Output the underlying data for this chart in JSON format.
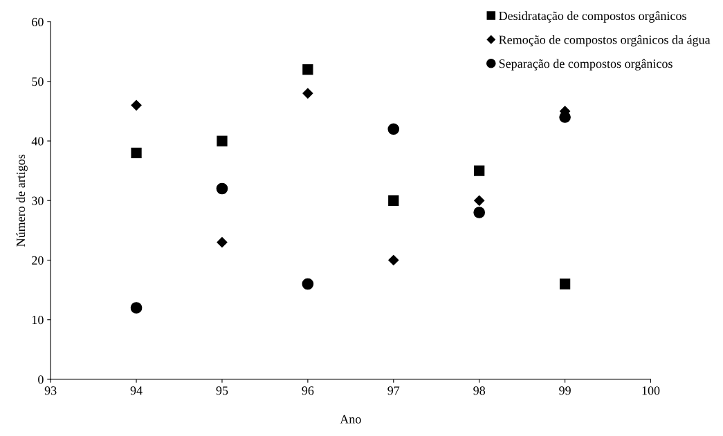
{
  "chart_data": {
    "type": "scatter",
    "xlabel": "Ano",
    "ylabel": "Número de artigos",
    "x": [
      94,
      95,
      96,
      97,
      98,
      99
    ],
    "series": [
      {
        "name": "Desidratação de compostos orgânicos",
        "color": "#000000",
        "marker": "square",
        "values": [
          38,
          40,
          52,
          30,
          35,
          16
        ]
      },
      {
        "name": "Remoção de compostos orgânicos da água",
        "color": "#000000",
        "marker": "diamond",
        "values": [
          46,
          23,
          48,
          20,
          30,
          45
        ]
      },
      {
        "name": "Separação de compostos orgânicos",
        "color": "#000000",
        "marker": "circle",
        "values": [
          12,
          32,
          16,
          42,
          28,
          44
        ]
      }
    ],
    "xlim": [
      93,
      100
    ],
    "xticks": [
      93,
      94,
      95,
      96,
      97,
      98,
      99,
      100
    ],
    "ylim": [
      0,
      60
    ],
    "yticks": [
      0,
      10,
      20,
      30,
      40,
      50,
      60
    ],
    "grid": false,
    "legend": "top right"
  }
}
